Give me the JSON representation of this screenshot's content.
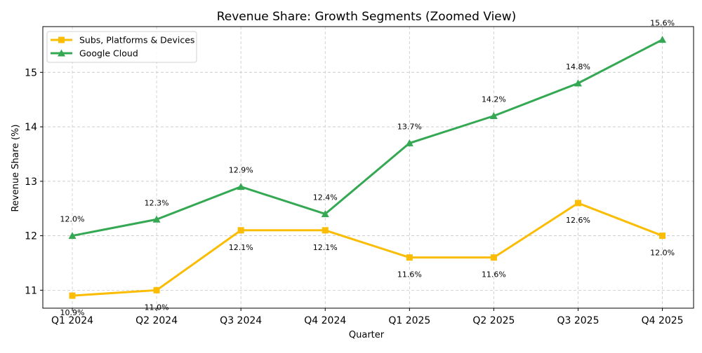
{
  "chart_data": {
    "type": "line",
    "title": "Revenue Share: Growth Segments (Zoomed View)",
    "xlabel": "Quarter",
    "ylabel": "Revenue Share (%)",
    "categories": [
      "Q1 2024",
      "Q2 2024",
      "Q3 2024",
      "Q4 2024",
      "Q1 2025",
      "Q2 2025",
      "Q3 2025",
      "Q4 2025"
    ],
    "ylim": [
      10.67,
      15.84
    ],
    "yticks": [
      11,
      12,
      13,
      14,
      15
    ],
    "grid": true,
    "legend_position": "top-left",
    "series": [
      {
        "name": "Subs, Platforms & Devices",
        "color": "#FBBC04",
        "marker": "square",
        "label_position": "below",
        "values": [
          10.9,
          11.0,
          12.1,
          12.1,
          11.6,
          11.6,
          12.6,
          12.0
        ],
        "labels": [
          "10.9%",
          "11.0%",
          "12.1%",
          "12.1%",
          "11.6%",
          "11.6%",
          "12.6%",
          "12.0%"
        ]
      },
      {
        "name": "Google Cloud",
        "color": "#34A853",
        "marker": "triangle",
        "label_position": "above",
        "values": [
          12.0,
          12.3,
          12.9,
          12.4,
          13.7,
          14.2,
          14.8,
          15.6
        ],
        "labels": [
          "12.0%",
          "12.3%",
          "12.9%",
          "12.4%",
          "13.7%",
          "14.2%",
          "14.8%",
          "15.6%"
        ]
      }
    ]
  }
}
